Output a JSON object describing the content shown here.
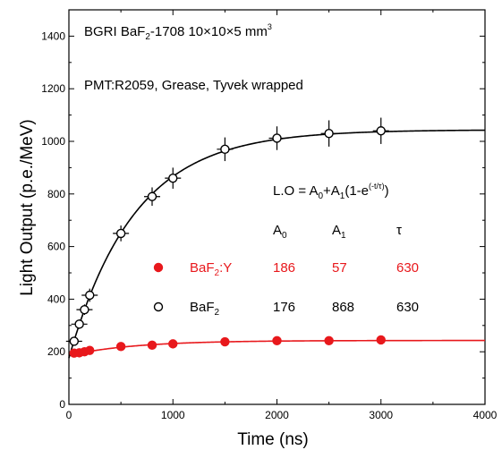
{
  "chart_data": {
    "type": "scatter",
    "xlabel": "Time (ns)",
    "ylabel": "Light Output (p.e./MeV)",
    "xlim": [
      0,
      4000
    ],
    "ylim": [
      0,
      1500
    ],
    "x_ticks": [
      0,
      1000,
      2000,
      3000,
      4000
    ],
    "y_ticks": [
      0,
      200,
      400,
      600,
      800,
      1000,
      1200,
      1400
    ],
    "grid": false,
    "annotations": {
      "line1": {
        "prefix": "BGRI  BaF",
        "sub": "2",
        "suffix": "-1708   10×10×5 mm",
        "sup": "3"
      },
      "line2": "PMT:R2059, Grease, Tyvek wrapped",
      "formula": {
        "a": "L.O = A",
        "a_sub": "0",
        "b": "+A",
        "b_sub": "1",
        "c": "(1-e",
        "c_sup": "(-t/τ)",
        "d": ")"
      },
      "headers": [
        {
          "text": "A",
          "sub": "0"
        },
        {
          "text": "A",
          "sub": "1"
        },
        {
          "text": "τ",
          "sub": ""
        }
      ]
    },
    "colors": {
      "bafy": "#e8181c",
      "baf2": "#000000"
    },
    "series": [
      {
        "name": "BaF2:Y",
        "label": {
          "text": "BaF",
          "sub": "2",
          "suffix": ":Y"
        },
        "params": [
          "186",
          "57",
          "630"
        ],
        "A0": 186,
        "A1": 57,
        "tau": 630,
        "marker": "filled-circle",
        "x": [
          50,
          100,
          150,
          200,
          500,
          800,
          1000,
          1500,
          2000,
          2500,
          3000
        ],
        "y": [
          195,
          196,
          200,
          205,
          220,
          225,
          230,
          238,
          242,
          242,
          245
        ],
        "yerr": []
      },
      {
        "name": "BaF2",
        "label": {
          "text": "BaF",
          "sub": "2",
          "suffix": ""
        },
        "params": [
          "176",
          "868",
          "630"
        ],
        "A0": 176,
        "A1": 868,
        "tau": 630,
        "marker": "open-circle",
        "x": [
          50,
          100,
          150,
          200,
          500,
          800,
          1000,
          1500,
          2000,
          2500,
          3000
        ],
        "y": [
          240,
          305,
          360,
          415,
          650,
          790,
          860,
          970,
          1012,
          1030,
          1040
        ],
        "yerr": [
          15,
          18,
          20,
          25,
          30,
          35,
          40,
          45,
          45,
          50,
          50
        ]
      }
    ]
  }
}
